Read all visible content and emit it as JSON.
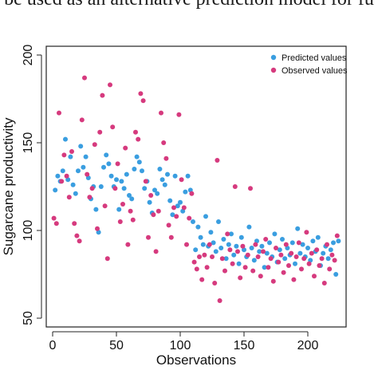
{
  "caption": "be used as an alternative prediction model for fu",
  "chart_data": {
    "type": "scatter",
    "xlabel": "Observations",
    "ylabel": "Sugarcane productivity",
    "xlim": [
      -5,
      230
    ],
    "ylim": [
      45,
      205
    ],
    "xticks": [
      0,
      50,
      100,
      150,
      200
    ],
    "yticks": [
      50,
      100,
      150,
      200
    ],
    "legend_position": "top-right",
    "grid": false,
    "series": [
      {
        "name": "Predicted values",
        "color": "#3a9ee0",
        "points": [
          [
            2,
            123
          ],
          [
            4,
            131
          ],
          [
            6,
            128
          ],
          [
            8,
            134
          ],
          [
            10,
            152
          ],
          [
            12,
            129
          ],
          [
            14,
            142
          ],
          [
            16,
            126
          ],
          [
            18,
            121
          ],
          [
            20,
            134
          ],
          [
            22,
            148
          ],
          [
            24,
            136
          ],
          [
            26,
            142
          ],
          [
            28,
            130
          ],
          [
            30,
            118
          ],
          [
            32,
            125
          ],
          [
            34,
            112
          ],
          [
            36,
            99
          ],
          [
            38,
            125
          ],
          [
            40,
            136
          ],
          [
            42,
            143
          ],
          [
            44,
            138
          ],
          [
            46,
            131
          ],
          [
            48,
            125
          ],
          [
            50,
            129
          ],
          [
            52,
            112
          ],
          [
            54,
            128
          ],
          [
            56,
            124
          ],
          [
            58,
            132
          ],
          [
            60,
            120
          ],
          [
            62,
            118
          ],
          [
            64,
            135
          ],
          [
            66,
            142
          ],
          [
            68,
            139
          ],
          [
            70,
            134
          ],
          [
            72,
            124
          ],
          [
            74,
            128
          ],
          [
            76,
            116
          ],
          [
            78,
            110
          ],
          [
            80,
            123
          ],
          [
            82,
            121
          ],
          [
            84,
            135
          ],
          [
            86,
            129
          ],
          [
            88,
            126
          ],
          [
            90,
            132
          ],
          [
            92,
            117
          ],
          [
            94,
            109
          ],
          [
            96,
            131
          ],
          [
            98,
            114
          ],
          [
            100,
            116
          ],
          [
            102,
            111
          ],
          [
            104,
            122
          ],
          [
            106,
            131
          ],
          [
            108,
            123
          ],
          [
            110,
            105
          ],
          [
            112,
            89
          ],
          [
            114,
            102
          ],
          [
            116,
            96
          ],
          [
            118,
            92
          ],
          [
            120,
            108
          ],
          [
            122,
            91
          ],
          [
            124,
            99
          ],
          [
            126,
            93
          ],
          [
            128,
            88
          ],
          [
            130,
            105
          ],
          [
            132,
            90
          ],
          [
            134,
            95
          ],
          [
            136,
            84
          ],
          [
            138,
            92
          ],
          [
            140,
            98
          ],
          [
            142,
            86
          ],
          [
            144,
            91
          ],
          [
            146,
            81
          ],
          [
            148,
            96
          ],
          [
            150,
            89
          ],
          [
            152,
            85
          ],
          [
            154,
            102
          ],
          [
            156,
            90
          ],
          [
            158,
            83
          ],
          [
            160,
            94
          ],
          [
            162,
            88
          ],
          [
            164,
            91
          ],
          [
            166,
            79
          ],
          [
            168,
            87
          ],
          [
            170,
            93
          ],
          [
            172,
            85
          ],
          [
            174,
            98
          ],
          [
            176,
            82
          ],
          [
            178,
            89
          ],
          [
            180,
            95
          ],
          [
            182,
            84
          ],
          [
            184,
            90
          ],
          [
            186,
            86
          ],
          [
            188,
            93
          ],
          [
            190,
            81
          ],
          [
            192,
            101
          ],
          [
            194,
            87
          ],
          [
            196,
            92
          ],
          [
            198,
            85
          ],
          [
            200,
            90
          ],
          [
            202,
            83
          ],
          [
            204,
            94
          ],
          [
            206,
            88
          ],
          [
            208,
            96
          ],
          [
            210,
            80
          ],
          [
            212,
            87
          ],
          [
            214,
            91
          ],
          [
            216,
            84
          ],
          [
            218,
            89
          ],
          [
            220,
            93
          ],
          [
            222,
            75
          ],
          [
            224,
            94
          ]
        ]
      },
      {
        "name": "Observed values",
        "color": "#d63a7e",
        "points": [
          [
            1,
            107
          ],
          [
            3,
            104
          ],
          [
            5,
            167
          ],
          [
            7,
            128
          ],
          [
            9,
            143
          ],
          [
            11,
            131
          ],
          [
            13,
            119
          ],
          [
            15,
            145
          ],
          [
            17,
            104
          ],
          [
            19,
            97
          ],
          [
            21,
            94
          ],
          [
            23,
            163
          ],
          [
            25,
            187
          ],
          [
            27,
            132
          ],
          [
            29,
            119
          ],
          [
            31,
            124
          ],
          [
            33,
            149
          ],
          [
            35,
            101
          ],
          [
            37,
            156
          ],
          [
            39,
            177
          ],
          [
            41,
            114
          ],
          [
            43,
            84
          ],
          [
            45,
            183
          ],
          [
            47,
            159
          ],
          [
            49,
            124
          ],
          [
            51,
            138
          ],
          [
            53,
            105
          ],
          [
            55,
            115
          ],
          [
            57,
            147
          ],
          [
            59,
            92
          ],
          [
            61,
            111
          ],
          [
            63,
            106
          ],
          [
            65,
            156
          ],
          [
            67,
            152
          ],
          [
            69,
            178
          ],
          [
            71,
            174
          ],
          [
            73,
            128
          ],
          [
            75,
            96
          ],
          [
            77,
            120
          ],
          [
            79,
            109
          ],
          [
            81,
            88
          ],
          [
            83,
            111
          ],
          [
            85,
            167
          ],
          [
            87,
            150
          ],
          [
            89,
            141
          ],
          [
            91,
            103
          ],
          [
            93,
            96
          ],
          [
            95,
            113
          ],
          [
            97,
            108
          ],
          [
            99,
            166
          ],
          [
            101,
            129
          ],
          [
            103,
            113
          ],
          [
            105,
            92
          ],
          [
            107,
            107
          ],
          [
            109,
            121
          ],
          [
            111,
            82
          ],
          [
            113,
            78
          ],
          [
            115,
            85
          ],
          [
            117,
            72
          ],
          [
            119,
            86
          ],
          [
            121,
            79
          ],
          [
            123,
            92
          ],
          [
            125,
            85
          ],
          [
            127,
            70
          ],
          [
            129,
            140
          ],
          [
            131,
            60
          ],
          [
            133,
            84
          ],
          [
            135,
            77
          ],
          [
            137,
            98
          ],
          [
            139,
            89
          ],
          [
            141,
            81
          ],
          [
            143,
            125
          ],
          [
            145,
            88
          ],
          [
            147,
            73
          ],
          [
            149,
            91
          ],
          [
            151,
            79
          ],
          [
            153,
            86
          ],
          [
            155,
            124
          ],
          [
            157,
            77
          ],
          [
            159,
            92
          ],
          [
            161,
            85
          ],
          [
            163,
            74
          ],
          [
            165,
            88
          ],
          [
            167,
            95
          ],
          [
            169,
            79
          ],
          [
            171,
            84
          ],
          [
            173,
            71
          ],
          [
            175,
            90
          ],
          [
            177,
            82
          ],
          [
            179,
            86
          ],
          [
            181,
            76
          ],
          [
            183,
            92
          ],
          [
            185,
            80
          ],
          [
            187,
            87
          ],
          [
            189,
            72
          ],
          [
            191,
            85
          ],
          [
            193,
            93
          ],
          [
            195,
            78
          ],
          [
            197,
            84
          ],
          [
            199,
            99
          ],
          [
            201,
            81
          ],
          [
            203,
            87
          ],
          [
            205,
            74
          ],
          [
            207,
            89
          ],
          [
            209,
            80
          ],
          [
            211,
            84
          ],
          [
            213,
            70
          ],
          [
            215,
            92
          ],
          [
            217,
            78
          ],
          [
            219,
            86
          ],
          [
            221,
            83
          ],
          [
            223,
            97
          ]
        ]
      }
    ]
  }
}
